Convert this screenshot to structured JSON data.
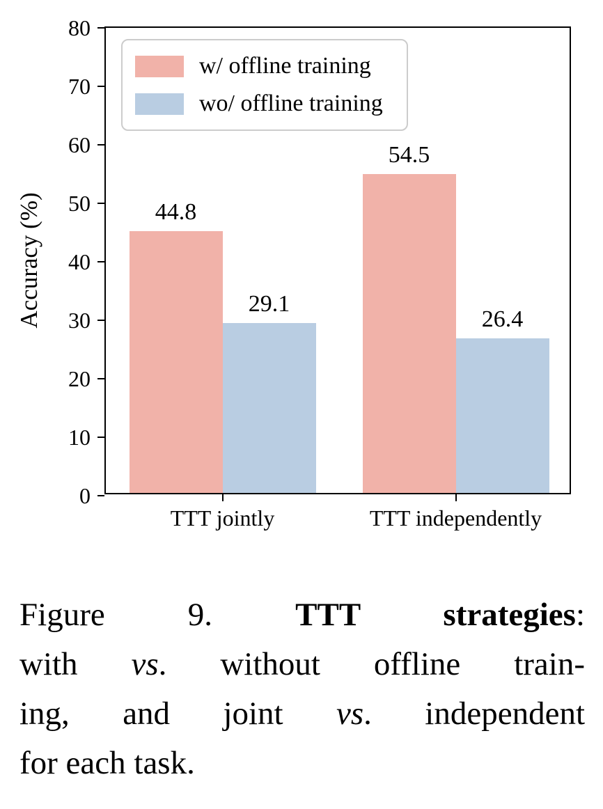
{
  "chart_data": {
    "type": "bar",
    "categories": [
      "TTT jointly",
      "TTT independently"
    ],
    "series": [
      {
        "name": "w/ offline training",
        "color": "#f1b2a9",
        "values": [
          44.8,
          54.5
        ]
      },
      {
        "name": "wo/ offline training",
        "color": "#b9cde2",
        "values": [
          29.1,
          26.4
        ]
      }
    ],
    "title": "",
    "xlabel": "",
    "ylabel": "Accuracy (%)",
    "ylim": [
      0,
      80
    ],
    "yticks": [
      0,
      10,
      20,
      30,
      40,
      50,
      60,
      70,
      80
    ],
    "grid": false,
    "legend_position": "upper left",
    "value_labels": true
  },
  "caption": {
    "lines": [
      [
        {
          "t": "Figure 9.",
          "b": false,
          "i": false
        },
        {
          "t": " ",
          "b": false,
          "i": false
        },
        {
          "t": "TTT strategies",
          "b": true,
          "i": false
        },
        {
          "t": ":",
          "b": false,
          "i": false
        }
      ],
      [
        {
          "t": "with ",
          "b": false,
          "i": false
        },
        {
          "t": "vs",
          "b": false,
          "i": true
        },
        {
          "t": ". without offline train-",
          "b": false,
          "i": false
        }
      ],
      [
        {
          "t": "ing, and joint ",
          "b": false,
          "i": false
        },
        {
          "t": "vs",
          "b": false,
          "i": true
        },
        {
          "t": ". independent",
          "b": false,
          "i": false
        }
      ],
      [
        {
          "t": "for each task.",
          "b": false,
          "i": false
        }
      ]
    ]
  }
}
